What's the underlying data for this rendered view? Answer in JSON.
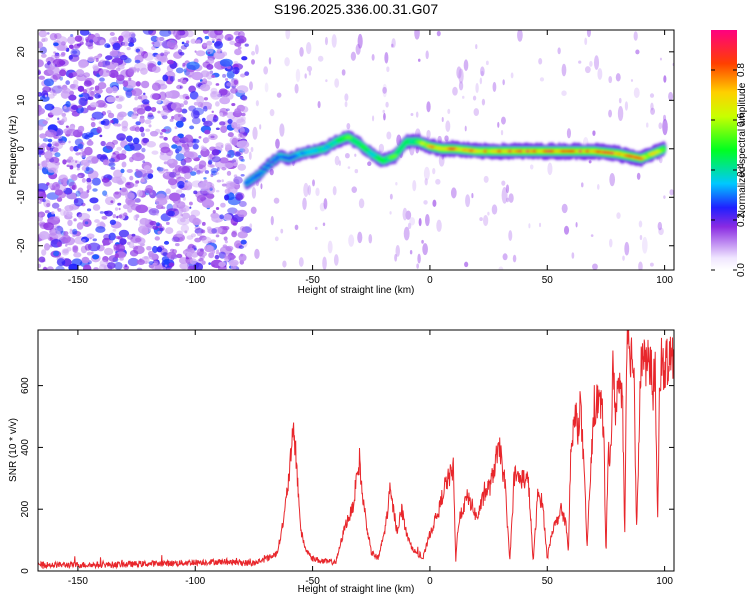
{
  "title": "S196.2025.336.00.31.G07",
  "chart_data": [
    {
      "type": "heatmap",
      "xlabel": "Height of straight line (km)",
      "ylabel": "Frequency (Hz)",
      "xlim": [
        -167,
        104
      ],
      "ylim": [
        -25,
        24.5
      ],
      "xticks": [
        -150,
        -100,
        -50,
        0,
        50,
        100
      ],
      "yticks": [
        -20,
        -10,
        0,
        10,
        20
      ],
      "colorbar": {
        "label": "Normalized spectral amplitude",
        "range": [
          0,
          0.96
        ],
        "ticks": [
          0,
          0.2,
          0.4,
          0.6,
          0.8
        ],
        "tick_labels": [
          "0.0",
          "0.2",
          "0.4",
          "0.6",
          "0.8"
        ]
      },
      "ridge": {
        "x": [
          -78,
          -72,
          -68,
          -64,
          -60,
          -55,
          -50,
          -45,
          -40,
          -35,
          -30,
          -25,
          -20,
          -15,
          -10,
          -5,
          0,
          5,
          10,
          20,
          30,
          40,
          50,
          60,
          70,
          80,
          85,
          90,
          95,
          100
        ],
        "y": [
          -7,
          -5,
          -3,
          -1.5,
          -2,
          -1,
          -0.5,
          0,
          1.5,
          2.5,
          1,
          -1,
          -2.5,
          -1.5,
          1.5,
          1.5,
          0.5,
          0,
          0,
          -0.5,
          -0.5,
          -0.5,
          -0.5,
          -0.5,
          -0.5,
          -1,
          -1.5,
          -2,
          -1,
          0
        ],
        "amplitude": [
          0.3,
          0.35,
          0.3,
          0.3,
          0.3,
          0.35,
          0.4,
          0.45,
          0.45,
          0.55,
          0.5,
          0.45,
          0.5,
          0.55,
          0.5,
          0.6,
          0.75,
          0.85,
          0.85,
          0.8,
          0.85,
          0.9,
          0.9,
          0.9,
          0.9,
          0.9,
          0.85,
          0.8,
          0.75,
          0.7
        ]
      },
      "noise_region_x": [
        -167,
        -78
      ]
    },
    {
      "type": "line",
      "xlabel": "Height of straight line (km)",
      "ylabel": "SNR (10 * v/v)",
      "xlim": [
        -167,
        104
      ],
      "ylim": [
        0,
        780
      ],
      "xticks": [
        -150,
        -100,
        -50,
        0,
        50,
        100
      ],
      "yticks": [
        0,
        200,
        400,
        600
      ],
      "series": [
        {
          "name": "SNR",
          "color": "#e8262b",
          "x": [
            -167,
            -140,
            -110,
            -90,
            -75,
            -68,
            -65,
            -62,
            -59,
            -58,
            -56,
            -55,
            -53,
            -50,
            -45,
            -40,
            -36,
            -33,
            -30,
            -29,
            -27,
            -25,
            -22,
            -19,
            -17,
            -14,
            -12,
            -10,
            -8,
            -6,
            -3,
            0,
            2,
            4,
            6,
            8,
            10,
            11,
            12,
            14,
            16,
            18,
            20,
            22,
            24,
            26,
            28,
            30,
            32,
            34,
            36,
            38,
            40,
            42,
            44,
            46,
            48,
            50,
            52,
            54,
            56,
            57,
            58,
            59,
            60,
            62,
            63,
            64,
            65,
            66,
            67,
            68,
            70,
            72,
            74,
            75,
            76,
            77,
            78,
            79,
            80,
            82,
            83,
            84,
            85,
            86,
            87,
            88,
            90,
            92,
            94,
            95,
            96,
            97,
            98,
            100,
            102,
            104
          ],
          "y": [
            20,
            20,
            25,
            30,
            25,
            45,
            60,
            180,
            380,
            470,
            250,
            130,
            70,
            40,
            30,
            30,
            150,
            200,
            360,
            260,
            150,
            60,
            40,
            140,
            260,
            130,
            200,
            120,
            80,
            60,
            40,
            120,
            160,
            200,
            270,
            300,
            330,
            30,
            150,
            200,
            240,
            210,
            170,
            220,
            260,
            280,
            360,
            390,
            280,
            30,
            310,
            300,
            300,
            290,
            30,
            250,
            220,
            40,
            130,
            160,
            200,
            170,
            160,
            50,
            380,
            500,
            460,
            540,
            420,
            260,
            80,
            250,
            530,
            560,
            480,
            40,
            390,
            380,
            650,
            520,
            600,
            560,
            110,
            750,
            720,
            700,
            650,
            130,
            700,
            660,
            680,
            580,
            660,
            140,
            660,
            650,
            700,
            680
          ]
        }
      ]
    }
  ]
}
